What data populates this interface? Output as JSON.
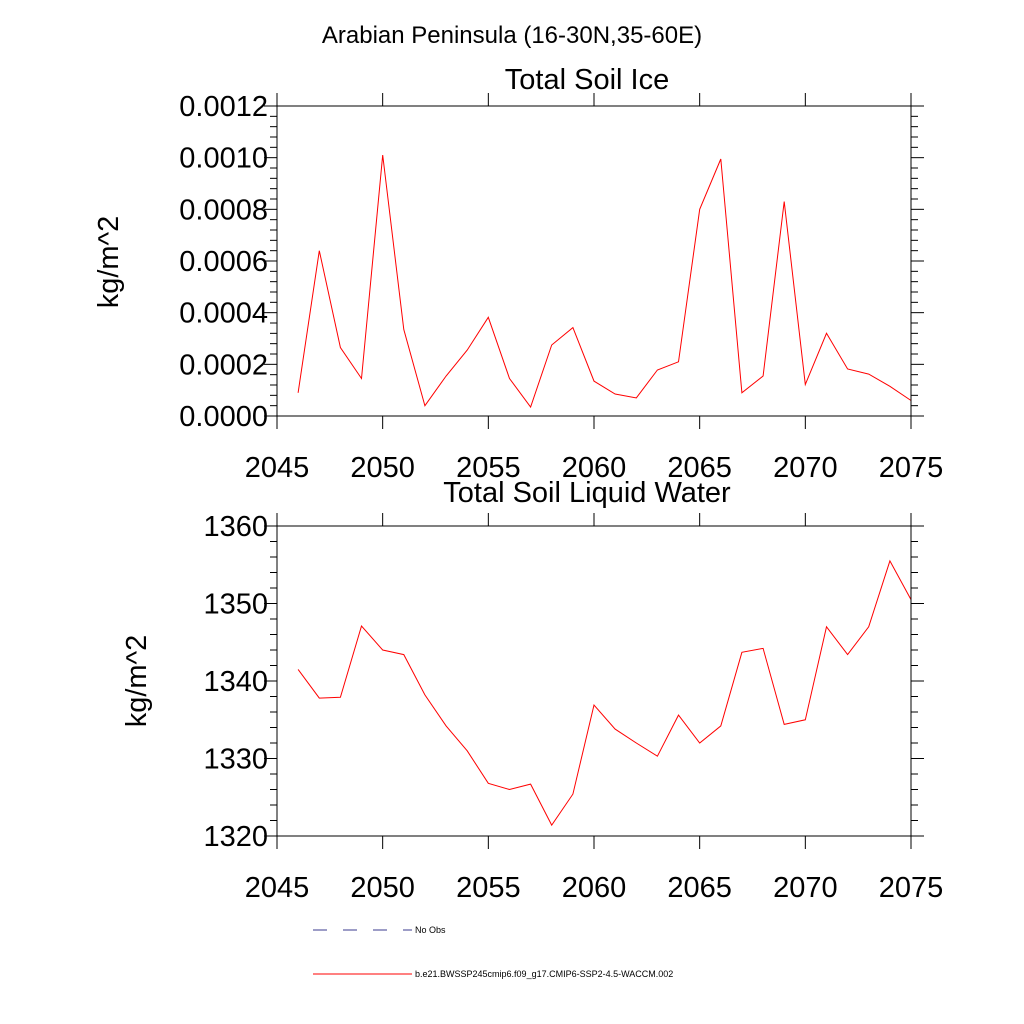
{
  "figure": {
    "title": "Arabian Peninsula (16-30N,35-60E)"
  },
  "chart_data": [
    {
      "type": "line",
      "title": "Total Soil Ice",
      "xlabel": "",
      "ylabel": "kg/m^2",
      "xlim": [
        2045,
        2075
      ],
      "ylim": [
        0.0,
        0.0012
      ],
      "xticks": [
        "2045",
        "2050",
        "2055",
        "2060",
        "2065",
        "2070",
        "2075"
      ],
      "yticks": [
        "0.0000",
        "0.0002",
        "0.0004",
        "0.0006",
        "0.0008",
        "0.0010",
        "0.0012"
      ],
      "grid": false,
      "x": [
        2046,
        2047,
        2048,
        2049,
        2050,
        2051,
        2052,
        2053,
        2054,
        2055,
        2056,
        2057,
        2058,
        2059,
        2060,
        2061,
        2062,
        2063,
        2064,
        2065,
        2066,
        2067,
        2068,
        2069,
        2070,
        2071,
        2072,
        2073,
        2074,
        2075
      ],
      "series": [
        {
          "color": "#ff0000",
          "values": [
            9e-05,
            0.00064,
            0.000265,
            0.000145,
            0.00101,
            0.000335,
            4e-05,
            0.000155,
            0.000255,
            0.000382,
            0.000145,
            3.5e-05,
            0.000275,
            0.000342,
            0.000135,
            8.5e-05,
            7e-05,
            0.000178,
            0.00021,
            0.0008,
            0.000995,
            9e-05,
            0.000155,
            0.00083,
            0.000122,
            0.00032,
            0.000182,
            0.000162,
            0.000115,
            6e-05
          ]
        }
      ]
    },
    {
      "type": "line",
      "title": "Total Soil Liquid Water",
      "xlabel": "",
      "ylabel": "kg/m^2",
      "xlim": [
        2045,
        2075
      ],
      "ylim": [
        1320,
        1360
      ],
      "xticks": [
        "2045",
        "2050",
        "2055",
        "2060",
        "2065",
        "2070",
        "2075"
      ],
      "yticks": [
        "1320",
        "1330",
        "1340",
        "1350",
        "1360"
      ],
      "grid": false,
      "x": [
        2046,
        2047,
        2048,
        2049,
        2050,
        2051,
        2052,
        2053,
        2054,
        2055,
        2056,
        2057,
        2058,
        2059,
        2060,
        2061,
        2062,
        2063,
        2064,
        2065,
        2066,
        2067,
        2068,
        2069,
        2070,
        2071,
        2072,
        2073,
        2074,
        2075
      ],
      "series": [
        {
          "color": "#ff0000",
          "values": [
            1341.5,
            1337.8,
            1337.9,
            1347.1,
            1344.0,
            1343.4,
            1338.2,
            1334.2,
            1331.0,
            1326.8,
            1326.0,
            1326.7,
            1321.4,
            1325.4,
            1336.9,
            1333.8,
            1332.0,
            1330.3,
            1335.6,
            1332.0,
            1334.2,
            1343.7,
            1344.2,
            1334.4,
            1335.0,
            1347.0,
            1343.4,
            1347.0,
            1355.5,
            1350.5
          ]
        }
      ]
    }
  ],
  "legend": {
    "placement": "bottom",
    "items": [
      {
        "label": "No Obs",
        "color": "#3b3b8f",
        "style": "dashed"
      },
      {
        "label": "b.e21.BWSSP245cmip6.f09_g17.CMIP6-SSP2-4.5-WACCM.002",
        "color": "#ff0000",
        "style": "solid"
      }
    ]
  }
}
